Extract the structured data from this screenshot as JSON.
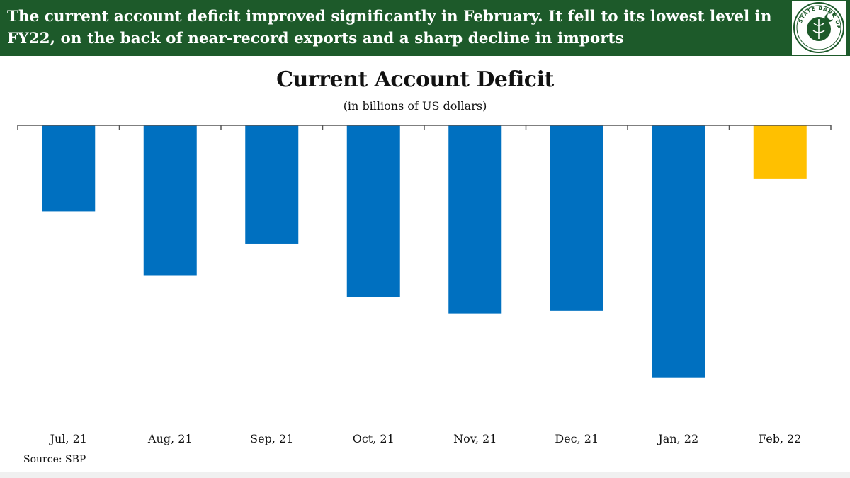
{
  "banner": {
    "headline": "The current account deficit improved significantly in February. It fell to its lowest level in FY22, on the back of near-record exports and a sharp decline in imports",
    "logo_name": "state-bank-of-pakistan-logo",
    "logo_text": "STATE BANK OF PAKISTAN",
    "background_color": "#1d5a2a"
  },
  "chart_data": {
    "type": "bar",
    "title": "Current Account Deficit",
    "subtitle": "(in billions of US dollars)",
    "categories": [
      "Jul, 21",
      "Aug, 21",
      "Sep, 21",
      "Oct, 21",
      "Nov, 21",
      "Dec, 21",
      "Jan, 22",
      "Feb, 22"
    ],
    "values": [
      -1.6,
      -2.8,
      -2.2,
      -3.2,
      -3.5,
      -3.45,
      -4.7,
      -1.0
    ],
    "bar_colors": [
      "#0070c0",
      "#0070c0",
      "#0070c0",
      "#0070c0",
      "#0070c0",
      "#0070c0",
      "#0070c0",
      "#ffc000"
    ],
    "ylim": [
      -5.6,
      0
    ],
    "grid": false,
    "legend": "none"
  },
  "footer": {
    "source": "Source: SBP"
  }
}
